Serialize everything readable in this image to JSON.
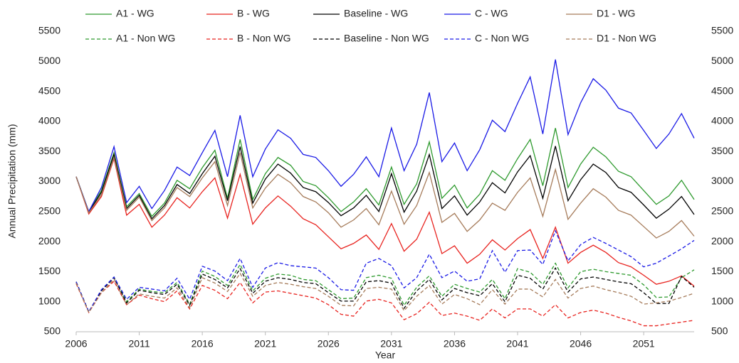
{
  "chart_data": {
    "type": "line",
    "xlabel": "Year",
    "ylabel": "Annual Precipitation (mm)",
    "x": [
      2006,
      2007,
      2008,
      2009,
      2010,
      2011,
      2012,
      2013,
      2014,
      2015,
      2016,
      2017,
      2018,
      2019,
      2020,
      2021,
      2022,
      2023,
      2024,
      2025,
      2026,
      2027,
      2028,
      2029,
      2030,
      2031,
      2032,
      2033,
      2034,
      2035,
      2036,
      2037,
      2038,
      2039,
      2040,
      2041,
      2042,
      2043,
      2044,
      2045,
      2046,
      2047,
      2048,
      2049,
      2050,
      2051,
      2052,
      2053,
      2054,
      2055
    ],
    "xlim": [
      2006,
      2055
    ],
    "xticks": [
      2006,
      2011,
      2016,
      2021,
      2026,
      2031,
      2036,
      2041,
      2046,
      2051
    ],
    "ylim": [
      500,
      5500
    ],
    "yticks": [
      500,
      1000,
      1500,
      2000,
      2500,
      3000,
      3500,
      4000,
      4500,
      5000,
      5500
    ],
    "y2lim": [
      500,
      5500
    ],
    "y2ticks": [
      500,
      1000,
      1500,
      2000,
      2500,
      3000,
      3500,
      4000,
      4500,
      5000,
      5500
    ],
    "legend": "top",
    "series": [
      {
        "name": "A1 - WG",
        "color": "#2e9a2e",
        "dashed": false,
        "values": [
          3080,
          2500,
          2850,
          3480,
          2580,
          2800,
          2420,
          2640,
          3020,
          2880,
          3230,
          3520,
          2720,
          3700,
          2700,
          3130,
          3400,
          3270,
          3000,
          2930,
          2730,
          2500,
          2660,
          2880,
          2610,
          3240,
          2620,
          2960,
          3660,
          2720,
          2940,
          2560,
          2790,
          3180,
          3020,
          3380,
          3700,
          2930,
          3890,
          2900,
          3290,
          3570,
          3410,
          3170,
          3080,
          2850,
          2620,
          2760,
          3020,
          2700
        ]
      },
      {
        "name": "B - WG",
        "color": "#e8231f",
        "dashed": false,
        "values": [
          3080,
          2460,
          2750,
          3380,
          2440,
          2620,
          2240,
          2440,
          2730,
          2560,
          2830,
          3060,
          2390,
          3120,
          2290,
          2560,
          2760,
          2590,
          2380,
          2280,
          2080,
          1880,
          1970,
          2110,
          1870,
          2300,
          1840,
          2040,
          2490,
          1800,
          1930,
          1640,
          1790,
          2030,
          1860,
          2050,
          2200,
          1720,
          2240,
          1640,
          1820,
          1940,
          1820,
          1650,
          1580,
          1440,
          1290,
          1340,
          1430,
          1260
        ]
      },
      {
        "name": "Baseline - WG",
        "color": "#000000",
        "dashed": false,
        "values": [
          3080,
          2490,
          2820,
          3450,
          2550,
          2770,
          2380,
          2600,
          2950,
          2800,
          3130,
          3420,
          2680,
          3580,
          2640,
          3040,
          3290,
          3140,
          2900,
          2830,
          2650,
          2430,
          2560,
          2770,
          2500,
          3130,
          2490,
          2840,
          3450,
          2550,
          2760,
          2440,
          2660,
          2980,
          2810,
          3160,
          3430,
          2720,
          3590,
          2680,
          3030,
          3290,
          3150,
          2900,
          2820,
          2610,
          2390,
          2540,
          2750,
          2450
        ]
      },
      {
        "name": "C - WG",
        "color": "#1a1ae6",
        "dashed": false,
        "values": [
          3080,
          2500,
          2900,
          3580,
          2650,
          2920,
          2550,
          2850,
          3240,
          3100,
          3480,
          3850,
          3080,
          4100,
          3080,
          3540,
          3860,
          3720,
          3450,
          3400,
          3180,
          2920,
          3120,
          3410,
          3080,
          3890,
          3180,
          3620,
          4480,
          3330,
          3640,
          3180,
          3530,
          4020,
          3830,
          4300,
          4740,
          3790,
          5030,
          3780,
          4310,
          4710,
          4520,
          4220,
          4140,
          3850,
          3550,
          3790,
          4130,
          3720
        ]
      },
      {
        "name": "D1 - WG",
        "color": "#a67c5b",
        "dashed": false,
        "values": [
          3080,
          2480,
          2780,
          3400,
          2520,
          2740,
          2350,
          2560,
          2900,
          2750,
          3060,
          3330,
          2600,
          3480,
          2560,
          2890,
          3120,
          2980,
          2750,
          2660,
          2480,
          2240,
          2360,
          2550,
          2280,
          2840,
          2290,
          2600,
          3150,
          2320,
          2470,
          2170,
          2360,
          2640,
          2520,
          2820,
          3060,
          2420,
          3200,
          2370,
          2640,
          2880,
          2740,
          2520,
          2440,
          2250,
          2060,
          2170,
          2350,
          2090
        ]
      },
      {
        "name": "A1 - Non WG",
        "color": "#2e9a2e",
        "dashed": true,
        "values": [
          1330,
          830,
          1190,
          1410,
          1000,
          1210,
          1170,
          1150,
          1320,
          960,
          1510,
          1420,
          1270,
          1620,
          1180,
          1390,
          1460,
          1440,
          1370,
          1350,
          1200,
          1050,
          1060,
          1400,
          1440,
          1390,
          940,
          1240,
          1430,
          1090,
          1290,
          1220,
          1160,
          1370,
          1050,
          1550,
          1490,
          1290,
          1640,
          1230,
          1500,
          1540,
          1500,
          1470,
          1440,
          1280,
          1070,
          1080,
          1400,
          1530
        ]
      },
      {
        "name": "B - Non WG",
        "color": "#e8231f",
        "dashed": true,
        "values": [
          1300,
          820,
          1150,
          1340,
          950,
          1110,
          1050,
          1000,
          1180,
          880,
          1270,
          1190,
          1050,
          1320,
          980,
          1160,
          1180,
          1140,
          1100,
          1060,
          950,
          790,
          760,
          1010,
          1040,
          980,
          700,
          800,
          990,
          770,
          810,
          760,
          690,
          880,
          730,
          880,
          880,
          760,
          950,
          730,
          820,
          860,
          810,
          740,
          680,
          600,
          600,
          630,
          660,
          690
        ]
      },
      {
        "name": "Baseline - Non WG",
        "color": "#000000",
        "dashed": true,
        "values": [
          1330,
          830,
          1180,
          1400,
          980,
          1190,
          1150,
          1120,
          1290,
          940,
          1460,
          1370,
          1230,
          1550,
          1140,
          1340,
          1400,
          1370,
          1320,
          1300,
          1150,
          1010,
          1010,
          1330,
          1350,
          1310,
          890,
          1180,
          1370,
          1030,
          1220,
          1150,
          1100,
          1300,
          1000,
          1440,
          1390,
          1210,
          1560,
          1160,
          1380,
          1410,
          1370,
          1330,
          1300,
          1150,
          970,
          970,
          1420,
          1240
        ]
      },
      {
        "name": "C - Non WG",
        "color": "#1a1ae6",
        "dashed": true,
        "values": [
          1330,
          830,
          1200,
          1410,
          1040,
          1240,
          1210,
          1180,
          1390,
          1040,
          1590,
          1510,
          1350,
          1720,
          1240,
          1560,
          1650,
          1600,
          1580,
          1560,
          1400,
          1200,
          1190,
          1640,
          1720,
          1600,
          1230,
          1400,
          1790,
          1400,
          1510,
          1340,
          1380,
          1850,
          1490,
          1850,
          1860,
          1620,
          2180,
          1680,
          1950,
          2070,
          1970,
          1860,
          1750,
          1580,
          1640,
          1760,
          1880,
          2020
        ]
      },
      {
        "name": "D1 - Non WG",
        "color": "#a67c5b",
        "dashed": true,
        "values": [
          1310,
          820,
          1150,
          1370,
          950,
          1130,
          1090,
          1060,
          1230,
          900,
          1400,
          1310,
          1170,
          1470,
          1090,
          1270,
          1320,
          1290,
          1250,
          1220,
          1090,
          940,
          930,
          1220,
          1240,
          1210,
          850,
          1090,
          1270,
          960,
          1120,
          1050,
          950,
          1200,
          960,
          1210,
          1210,
          1080,
          1370,
          1060,
          1220,
          1260,
          1200,
          1150,
          1090,
          960,
          980,
          1010,
          1070,
          1140
        ]
      }
    ]
  }
}
